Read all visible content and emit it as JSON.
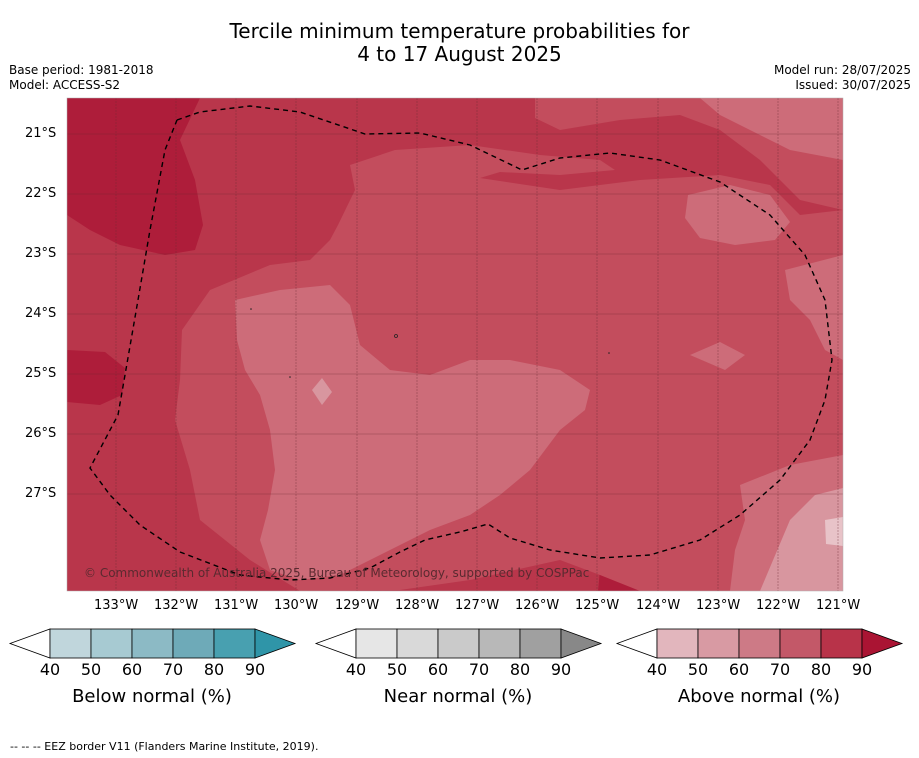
{
  "title_line1": "Tercile minimum temperature probabilities for",
  "title_line2": "4 to 17 August 2025",
  "base_period": "Base period: 1981-2018",
  "model": "Model: ACCESS-S2",
  "model_run": "Model run: 28/07/2025",
  "issued": "Issued: 30/07/2025",
  "copyright": "© Commonwealth of Australia 2025, Bureau of Meteorology, supported by COSPPac",
  "footnote": "--  --  -- EEZ border V11 (Flanders Marine Institute, 2019).",
  "lat_labels": [
    "21°S",
    "22°S",
    "23°S",
    "24°S",
    "25°S",
    "26°S",
    "27°S"
  ],
  "lon_labels": [
    "133°W",
    "132°W",
    "131°W",
    "130°W",
    "129°W",
    "128°W",
    "127°W",
    "126°W",
    "125°W",
    "124°W",
    "123°W",
    "122°W",
    "121°W"
  ],
  "colorbars": [
    {
      "title": "Below normal (%)",
      "ticks": [
        "40",
        "50",
        "60",
        "70",
        "80",
        "90"
      ],
      "colors": [
        "#c0d6dc",
        "#a7cad2",
        "#8cbac5",
        "#6eaab8",
        "#48a0b0",
        "#2f95a8"
      ]
    },
    {
      "title": "Near normal (%)",
      "ticks": [
        "40",
        "50",
        "60",
        "70",
        "80",
        "90"
      ],
      "colors": [
        "#e6e6e6",
        "#d9d9d9",
        "#cacaca",
        "#b8b8b8",
        "#a0a0a0",
        "#888888"
      ]
    },
    {
      "title": "Above normal (%)",
      "ticks": [
        "40",
        "50",
        "60",
        "70",
        "80",
        "90"
      ],
      "colors": [
        "#e2b6bd",
        "#d89aa3",
        "#cd7a86",
        "#c35868",
        "#b83349",
        "#aa1433"
      ]
    }
  ],
  "map_colors": {
    "p60": "#d8969f",
    "p70": "#cd6c79",
    "p80": "#c34d5d",
    "p90": "#b9364b",
    "p100": "#ae1d3a"
  }
}
